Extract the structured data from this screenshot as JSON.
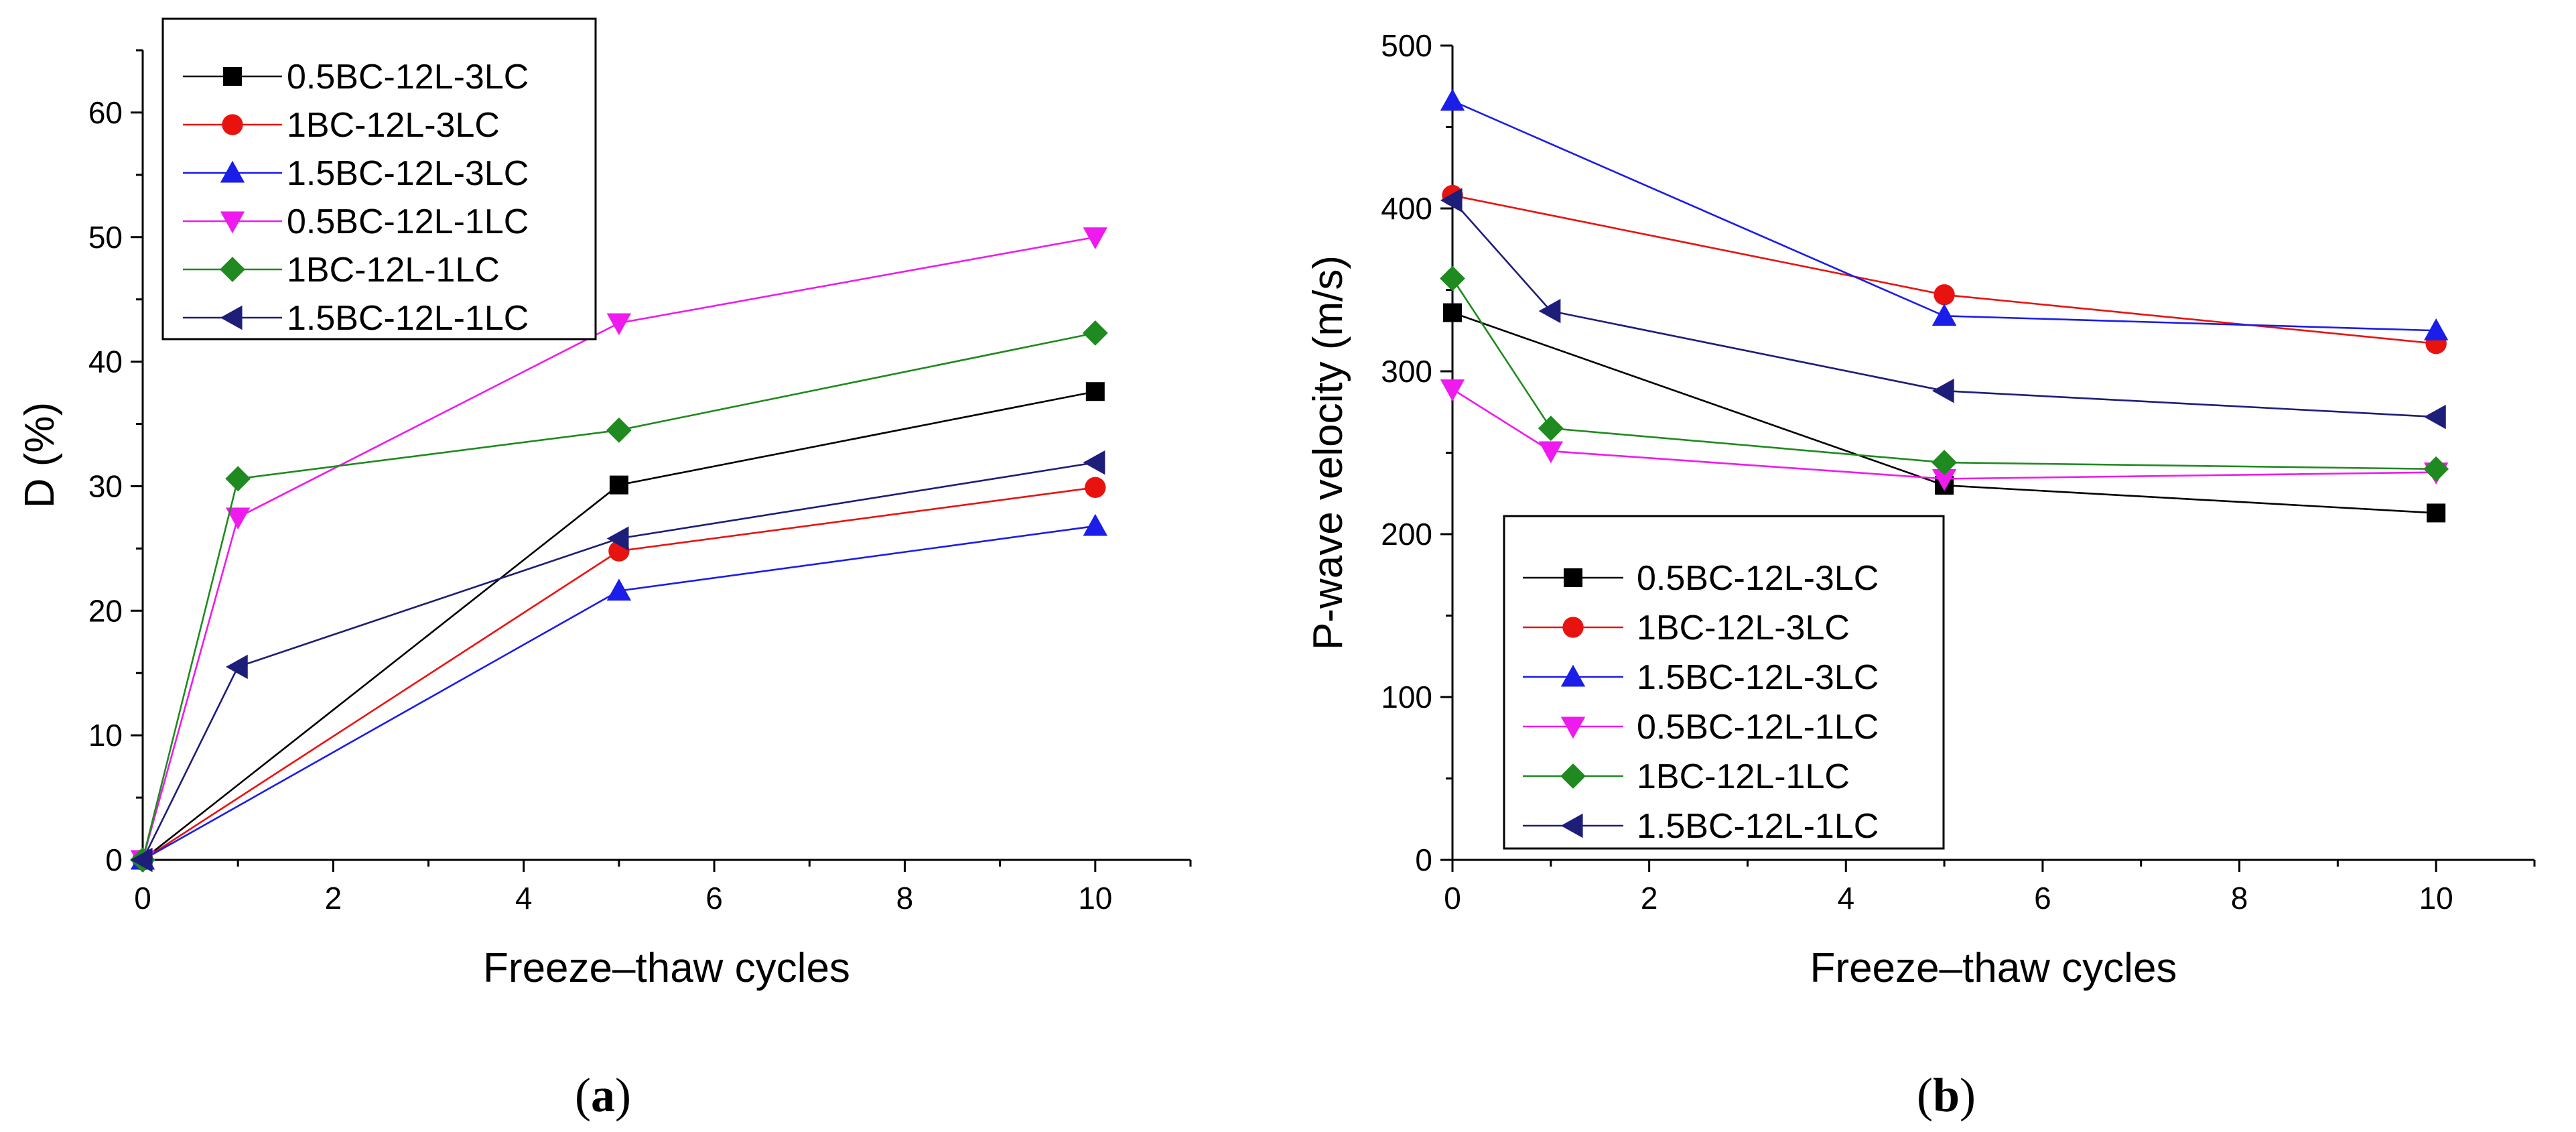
{
  "chart_data": [
    {
      "type": "line",
      "panel_label": {
        "open": "(",
        "letter": "a",
        "close": ")"
      },
      "xlabel": "Freeze–thaw cycles",
      "ylabel": "D (%)",
      "xlim": [
        0,
        11
      ],
      "ylim": [
        0,
        65
      ],
      "xticks": [
        0,
        2,
        4,
        6,
        8,
        10
      ],
      "yticks": [
        0,
        10,
        20,
        30,
        40,
        50,
        60
      ],
      "grid": false,
      "legend_position": "top-left",
      "series": [
        {
          "name": "0.5BC-12L-3LC",
          "color": "#000000",
          "marker": "square",
          "x": [
            0,
            5,
            10
          ],
          "y": [
            0,
            30.1,
            37.6
          ]
        },
        {
          "name": "1BC-12L-3LC",
          "color": "#e8130f",
          "marker": "circle",
          "x": [
            0,
            5,
            10
          ],
          "y": [
            0,
            24.8,
            29.9
          ]
        },
        {
          "name": "1.5BC-12L-3LC",
          "color": "#1b1de8",
          "marker": "triangle-up",
          "x": [
            0,
            5,
            10
          ],
          "y": [
            0,
            21.6,
            26.8
          ]
        },
        {
          "name": "0.5BC-12L-1LC",
          "color": "#ee1aee",
          "marker": "triangle-down",
          "x": [
            0,
            1,
            5,
            10
          ],
          "y": [
            0,
            27.5,
            43.1,
            50
          ]
        },
        {
          "name": "1BC-12L-1LC",
          "color": "#1f8a1f",
          "marker": "diamond",
          "x": [
            0,
            1,
            5,
            10
          ],
          "y": [
            0,
            30.6,
            34.5,
            42.3
          ]
        },
        {
          "name": "1.5BC-12L-1LC",
          "color": "#1d1d7a",
          "marker": "triangle-left",
          "x": [
            0,
            1,
            5,
            10
          ],
          "y": [
            0,
            15.5,
            25.8,
            31.9
          ]
        }
      ]
    },
    {
      "type": "line",
      "panel_label": {
        "open": "(",
        "letter": "b",
        "close": ")"
      },
      "xlabel": "Freeze–thaw cycles",
      "ylabel": "P-wave velocity (m/s)",
      "xlim": [
        0,
        11
      ],
      "ylim": [
        0,
        500
      ],
      "xticks": [
        0,
        2,
        4,
        6,
        8,
        10
      ],
      "yticks": [
        0,
        100,
        200,
        300,
        400,
        500
      ],
      "grid": false,
      "legend_position": "bottom-left",
      "series": [
        {
          "name": "0.5BC-12L-3LC",
          "color": "#000000",
          "marker": "square",
          "x": [
            0,
            5,
            10
          ],
          "y": [
            336,
            230,
            213
          ]
        },
        {
          "name": "1BC-12L-3LC",
          "color": "#e8130f",
          "marker": "circle",
          "x": [
            0,
            5,
            10
          ],
          "y": [
            408,
            347,
            317
          ]
        },
        {
          "name": "1.5BC-12L-3LC",
          "color": "#1b1de8",
          "marker": "triangle-up",
          "x": [
            0,
            5,
            10
          ],
          "y": [
            466,
            334,
            325
          ]
        },
        {
          "name": "0.5BC-12L-1LC",
          "color": "#ee1aee",
          "marker": "triangle-down",
          "x": [
            0,
            1,
            5,
            10
          ],
          "y": [
            289,
            251,
            234,
            238
          ]
        },
        {
          "name": "1BC-12L-1LC",
          "color": "#1f8a1f",
          "marker": "diamond",
          "x": [
            0,
            1,
            5,
            10
          ],
          "y": [
            357,
            265,
            244,
            240
          ]
        },
        {
          "name": "1.5BC-12L-1LC",
          "color": "#1d1d7a",
          "marker": "triangle-left",
          "x": [
            0,
            1,
            5,
            10
          ],
          "y": [
            405,
            337,
            288,
            272
          ]
        }
      ]
    }
  ]
}
